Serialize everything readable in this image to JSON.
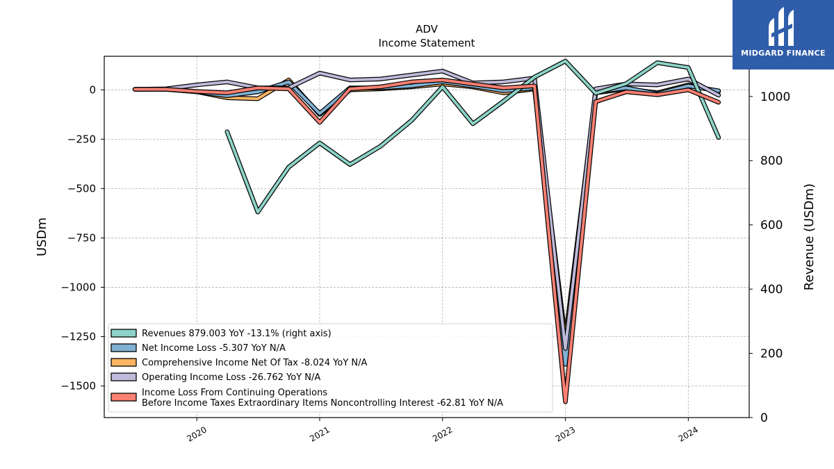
{
  "chart_data": {
    "type": "line",
    "title": "ADV",
    "subtitle": "Income Statement",
    "ylabel": "USDm",
    "ylabel_right": "Revenue (USDm)",
    "ylim": [
      -1660,
      170
    ],
    "ylim_right": [
      0,
      1125
    ],
    "yticks": [
      0,
      -250,
      -500,
      -750,
      -1000,
      -1250,
      -1500
    ],
    "yticks_labels": [
      "0",
      "−250",
      "−500",
      "−750",
      "−1000",
      "−1250",
      "−1500"
    ],
    "yticks_right": [
      0,
      200,
      400,
      600,
      800,
      1000
    ],
    "xlim": [
      "2019-04-01",
      "2024-07-01"
    ],
    "xticks": [
      "2020",
      "2021",
      "2022",
      "2023",
      "2024"
    ],
    "grid": true,
    "legend_position": "lower-left",
    "series": [
      {
        "name": "Revenues",
        "legend": "Revenues  879.003 YoY -13.1% (right axis)",
        "axis": "right",
        "color": "#8dd3c7",
        "points": [
          [
            "2020-04-01",
            890
          ],
          [
            "2020-07-01",
            640
          ],
          [
            "2020-10-01",
            780
          ],
          [
            "2021-01-01",
            855
          ],
          [
            "2021-04-01",
            788
          ],
          [
            "2021-07-01",
            845
          ],
          [
            "2021-10-01",
            925
          ],
          [
            "2022-01-01",
            1030
          ],
          [
            "2022-04-01",
            915
          ],
          [
            "2022-07-01",
            985
          ],
          [
            "2022-10-01",
            1060
          ],
          [
            "2023-01-01",
            1110
          ],
          [
            "2023-04-01",
            1010
          ],
          [
            "2023-07-01",
            1040
          ],
          [
            "2023-10-01",
            1105
          ],
          [
            "2024-01-01",
            1090
          ],
          [
            "2024-04-01",
            872
          ]
        ]
      },
      {
        "name": "Net Income Loss",
        "legend": "Net Income Loss  -5.307 YoY N/A",
        "axis": "left",
        "color": "#80b1d3",
        "points": [
          [
            "2019-07-01",
            3
          ],
          [
            "2019-10-01",
            3
          ],
          [
            "2020-01-01",
            -10
          ],
          [
            "2020-04-01",
            -30
          ],
          [
            "2020-07-01",
            -10
          ],
          [
            "2020-10-01",
            40
          ],
          [
            "2021-01-01",
            -120
          ],
          [
            "2021-04-01",
            10
          ],
          [
            "2021-07-01",
            10
          ],
          [
            "2021-10-01",
            20
          ],
          [
            "2022-01-01",
            40
          ],
          [
            "2022-04-01",
            20
          ],
          [
            "2022-07-01",
            -5
          ],
          [
            "2022-10-01",
            10
          ],
          [
            "2023-01-01",
            -1390
          ],
          [
            "2023-04-01",
            -10
          ],
          [
            "2023-07-01",
            10
          ],
          [
            "2023-10-01",
            -20
          ],
          [
            "2024-01-01",
            20
          ],
          [
            "2024-04-01",
            -5
          ]
        ]
      },
      {
        "name": "Comprehensive Income Net Of Tax",
        "legend": "Comprehensive Income Net Of Tax  -8.024 YoY N/A",
        "axis": "left",
        "color": "#fdb462",
        "points": [
          [
            "2019-07-01",
            3
          ],
          [
            "2019-10-01",
            3
          ],
          [
            "2020-01-01",
            -10
          ],
          [
            "2020-04-01",
            -40
          ],
          [
            "2020-07-01",
            -45
          ],
          [
            "2020-10-01",
            50
          ],
          [
            "2021-01-01",
            -125
          ],
          [
            "2021-04-01",
            0
          ],
          [
            "2021-07-01",
            5
          ],
          [
            "2021-10-01",
            15
          ],
          [
            "2022-01-01",
            30
          ],
          [
            "2022-04-01",
            15
          ],
          [
            "2022-07-01",
            -15
          ],
          [
            "2022-10-01",
            5
          ],
          [
            "2023-01-01",
            -1260
          ],
          [
            "2023-04-01",
            -15
          ],
          [
            "2023-07-01",
            5
          ],
          [
            "2023-10-01",
            -15
          ],
          [
            "2024-01-01",
            25
          ],
          [
            "2024-04-01",
            -8
          ]
        ]
      },
      {
        "name": "Operating Income Loss",
        "legend": "Operating Income Loss  -26.762 YoY N/A",
        "axis": "left",
        "color": "#bebada",
        "points": [
          [
            "2019-07-01",
            3
          ],
          [
            "2019-10-01",
            5
          ],
          [
            "2020-01-01",
            25
          ],
          [
            "2020-04-01",
            40
          ],
          [
            "2020-07-01",
            10
          ],
          [
            "2020-10-01",
            10
          ],
          [
            "2021-01-01",
            85
          ],
          [
            "2021-04-01",
            50
          ],
          [
            "2021-07-01",
            55
          ],
          [
            "2021-10-01",
            75
          ],
          [
            "2022-01-01",
            95
          ],
          [
            "2022-04-01",
            35
          ],
          [
            "2022-07-01",
            40
          ],
          [
            "2022-10-01",
            60
          ],
          [
            "2023-01-01",
            -1310
          ],
          [
            "2023-04-01",
            5
          ],
          [
            "2023-07-01",
            30
          ],
          [
            "2023-10-01",
            25
          ],
          [
            "2024-01-01",
            55
          ],
          [
            "2024-04-01",
            -27
          ]
        ]
      },
      {
        "name": "Income Loss From Continuing Operations Before Income Taxes Extraordinary Items Noncontrolling Interest",
        "legend": [
          "Income Loss From Continuing Operations",
          "Before Income Taxes Extraordinary Items Noncontrolling Interest  -62.81 YoY N/A"
        ],
        "axis": "left",
        "color": "#fb8072",
        "points": [
          [
            "2019-07-01",
            3
          ],
          [
            "2019-10-01",
            3
          ],
          [
            "2020-01-01",
            -8
          ],
          [
            "2020-04-01",
            -15
          ],
          [
            "2020-07-01",
            10
          ],
          [
            "2020-10-01",
            5
          ],
          [
            "2021-01-01",
            -165
          ],
          [
            "2021-04-01",
            5
          ],
          [
            "2021-07-01",
            15
          ],
          [
            "2021-10-01",
            40
          ],
          [
            "2022-01-01",
            50
          ],
          [
            "2022-04-01",
            30
          ],
          [
            "2022-07-01",
            10
          ],
          [
            "2022-10-01",
            20
          ],
          [
            "2023-01-01",
            -1580
          ],
          [
            "2023-04-01",
            -60
          ],
          [
            "2023-07-01",
            -10
          ],
          [
            "2023-10-01",
            -25
          ],
          [
            "2024-01-01",
            0
          ],
          [
            "2024-04-01",
            -63
          ]
        ]
      }
    ]
  },
  "logo": {
    "text": "MIDGARD FINANCE",
    "color": "#2f5daa"
  }
}
